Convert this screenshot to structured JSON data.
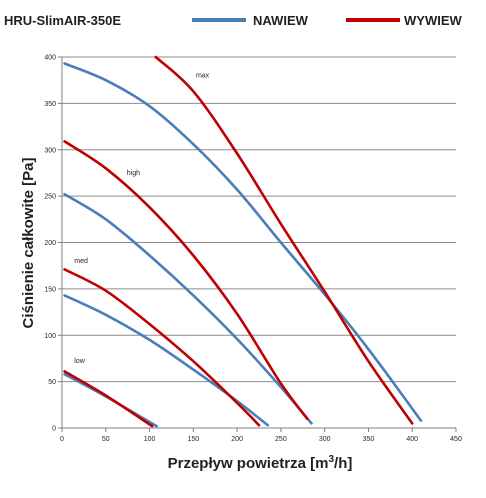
{
  "colors": {
    "nawiew": "#4a7ebb",
    "wywiew": "#c00000",
    "grid": "#8c8c8c",
    "axis": "#7f7f7f",
    "text": "#231f20"
  },
  "chart_data": {
    "type": "line",
    "title": "HRU-SlimAIR-350E",
    "xlabel": "Przepływ powietrza [m³/h]",
    "xlabel_parts": {
      "text": "Przepływ powietrza [m",
      "sup": "3",
      "tail": "/h]"
    },
    "ylabel": "Ciśnienie całkowite [Pa]",
    "xlim": [
      0,
      450
    ],
    "ylim": [
      0,
      400
    ],
    "xticks": [
      "0",
      "50",
      "100",
      "150",
      "200",
      "250",
      "300",
      "350",
      "400",
      "450"
    ],
    "yticks": [
      "0",
      "50",
      "100",
      "150",
      "200",
      "250",
      "300",
      "350",
      "400"
    ],
    "xtick_values": [
      0,
      50,
      100,
      150,
      200,
      250,
      300,
      350,
      400,
      450
    ],
    "ytick_values": [
      0,
      50,
      100,
      150,
      200,
      250,
      300,
      350,
      400
    ],
    "grid": "horizontal",
    "legend_position": "top",
    "legend": [
      {
        "name": "NAWIEW",
        "color": "#4a7ebb"
      },
      {
        "name": "WYWIEW",
        "color": "#c00000"
      }
    ],
    "annotations": [
      {
        "text": "max",
        "x": 153,
        "y": 378
      },
      {
        "text": "high",
        "x": 74,
        "y": 273
      },
      {
        "text": "med",
        "x": 14,
        "y": 178
      },
      {
        "text": "low",
        "x": 14,
        "y": 70
      }
    ],
    "series": [
      {
        "name": "NAWIEW",
        "group": "max",
        "color": "#4a7ebb",
        "x": [
          3,
          50,
          100,
          150,
          200,
          250,
          300,
          350,
          410
        ],
        "y": [
          393,
          375,
          347,
          306,
          257,
          200,
          144,
          85,
          8
        ]
      },
      {
        "name": "WYWIEW",
        "group": "max",
        "color": "#c00000",
        "x": [
          107,
          150,
          200,
          250,
          300,
          350,
          400
        ],
        "y": [
          400,
          363,
          296,
          220,
          147,
          72,
          5
        ]
      },
      {
        "name": "NAWIEW",
        "group": "high",
        "color": "#4a7ebb",
        "x": [
          3,
          50,
          100,
          150,
          200,
          250,
          285
        ],
        "y": [
          252,
          225,
          186,
          143,
          96,
          44,
          5
        ]
      },
      {
        "name": "WYWIEW",
        "group": "high",
        "color": "#c00000",
        "x": [
          3,
          50,
          100,
          150,
          200,
          250,
          280
        ],
        "y": [
          309,
          280,
          238,
          186,
          123,
          48,
          10
        ]
      },
      {
        "name": "NAWIEW",
        "group": "med",
        "color": "#4a7ebb",
        "x": [
          3,
          50,
          100,
          150,
          200,
          235
        ],
        "y": [
          143,
          122,
          95,
          63,
          29,
          3
        ]
      },
      {
        "name": "WYWIEW",
        "group": "med",
        "color": "#c00000",
        "x": [
          3,
          50,
          100,
          150,
          200,
          225
        ],
        "y": [
          171,
          148,
          112,
          72,
          27,
          3
        ]
      },
      {
        "name": "NAWIEW",
        "group": "low",
        "color": "#4a7ebb",
        "x": [
          3,
          50,
          108
        ],
        "y": [
          58,
          34,
          2
        ]
      },
      {
        "name": "WYWIEW",
        "group": "low",
        "color": "#c00000",
        "x": [
          3,
          50,
          103
        ],
        "y": [
          61,
          35,
          2
        ]
      }
    ]
  }
}
